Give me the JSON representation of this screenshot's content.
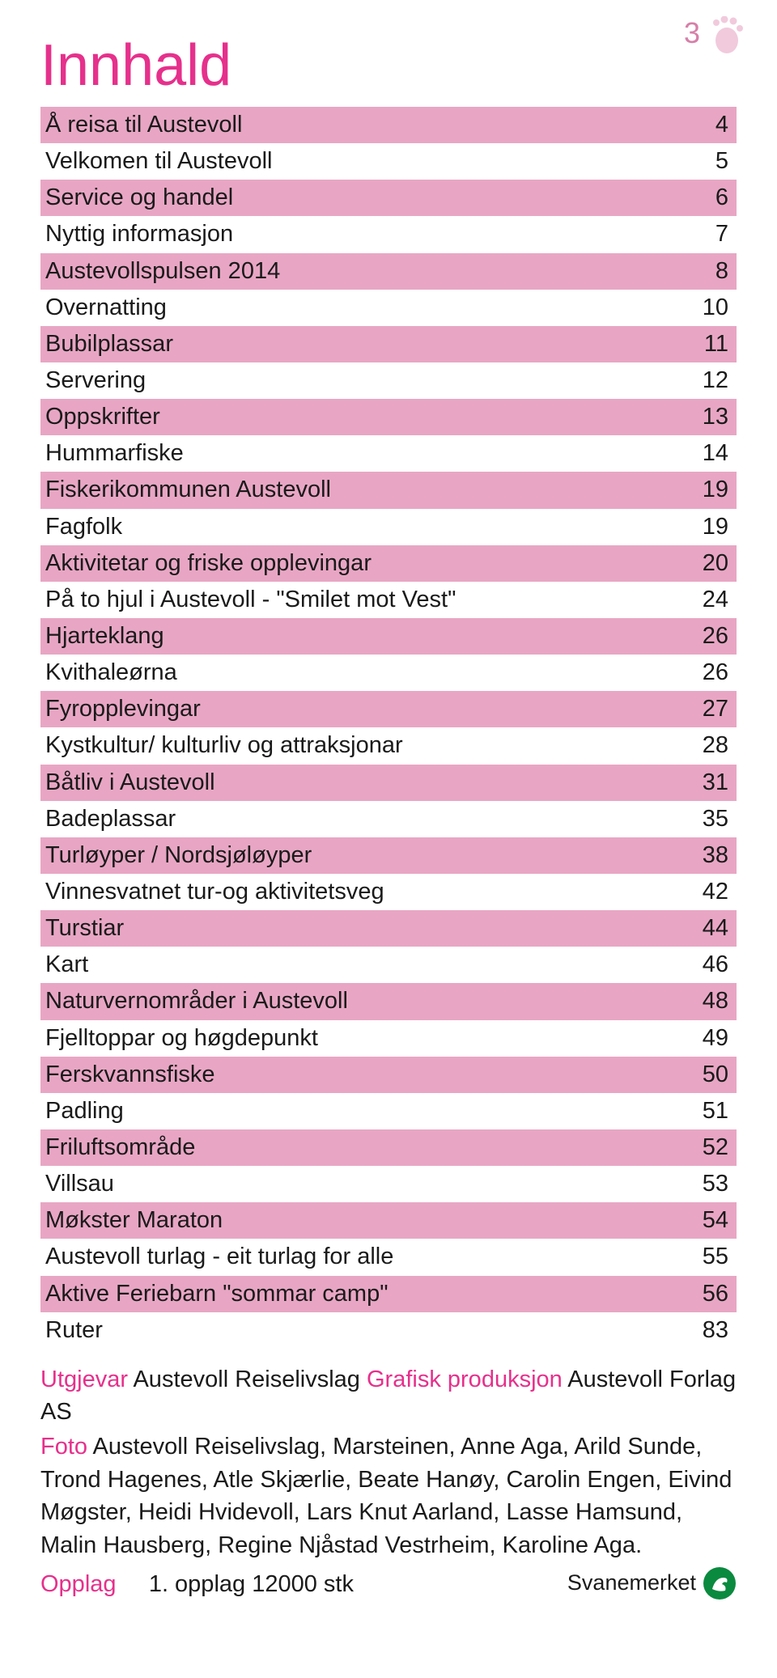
{
  "page_number": "3",
  "title": "Innhald",
  "colors": {
    "accent_pink": "#e6308c",
    "row_pink": "#e8a6c4",
    "row_white": "#ffffff",
    "page_number_color": "#d67fa8",
    "text": "#1a1a1a",
    "svanemerket_green": "#0a8a3f"
  },
  "typography": {
    "title_fontsize": 72,
    "row_fontsize": 29,
    "credits_fontsize": 29
  },
  "toc": [
    {
      "label": "Å reisa til Austevoll",
      "page": "4",
      "shade": "pink"
    },
    {
      "label": "Velkomen til Austevoll",
      "page": "5",
      "shade": "white"
    },
    {
      "label": "Service og handel",
      "page": "6",
      "shade": "pink"
    },
    {
      "label": "Nyttig informasjon",
      "page": "7",
      "shade": "white"
    },
    {
      "label": "Austevollspulsen 2014",
      "page": "8",
      "shade": "pink"
    },
    {
      "label": "Overnatting",
      "page": "10",
      "shade": "white"
    },
    {
      "label": "Bubilplassar",
      "page": "11",
      "shade": "pink"
    },
    {
      "label": "Servering",
      "page": "12",
      "shade": "white"
    },
    {
      "label": "Oppskrifter",
      "page": "13",
      "shade": "pink"
    },
    {
      "label": "Hummarfiske",
      "page": "14",
      "shade": "white"
    },
    {
      "label": "Fiskerikommunen Austevoll",
      "page": "19",
      "shade": "pink"
    },
    {
      "label": "Fagfolk",
      "page": "19",
      "shade": "white"
    },
    {
      "label": "Aktivitetar og friske opplevingar",
      "page": "20",
      "shade": "pink"
    },
    {
      "label": "På to hjul i Austevoll - \"Smilet mot Vest\"",
      "page": "24",
      "shade": "white"
    },
    {
      "label": "Hjarteklang",
      "page": "26",
      "shade": "pink"
    },
    {
      "label": "Kvithaleørna",
      "page": "26",
      "shade": "white"
    },
    {
      "label": "Fyropplevingar",
      "page": "27",
      "shade": "pink"
    },
    {
      "label": "Kystkultur/ kulturliv og attraksjonar",
      "page": "28",
      "shade": "white"
    },
    {
      "label": "Båtliv i Austevoll",
      "page": "31",
      "shade": "pink"
    },
    {
      "label": "Badeplassar",
      "page": "35",
      "shade": "white"
    },
    {
      "label": "Turløyper / Nordsjøløyper",
      "page": "38",
      "shade": "pink"
    },
    {
      "label": "Vinnesvatnet tur-og aktivitetsveg",
      "page": "42",
      "shade": "white"
    },
    {
      "label": "Turstiar",
      "page": "44",
      "shade": "pink"
    },
    {
      "label": "Kart",
      "page": "46",
      "shade": "white"
    },
    {
      "label": "Naturvernområder i Austevoll",
      "page": "48",
      "shade": "pink"
    },
    {
      "label": "Fjelltoppar og høgdepunkt",
      "page": "49",
      "shade": "white"
    },
    {
      "label": "Ferskvannsfiske",
      "page": "50",
      "shade": "pink"
    },
    {
      "label": "Padling",
      "page": "51",
      "shade": "white"
    },
    {
      "label": "Friluftsområde",
      "page": "52",
      "shade": "pink"
    },
    {
      "label": "Villsau",
      "page": "53",
      "shade": "white"
    },
    {
      "label": "Møkster Maraton",
      "page": "54",
      "shade": "pink"
    },
    {
      "label": "Austevoll turlag - eit turlag for alle",
      "page": "55",
      "shade": "white"
    },
    {
      "label": "Aktive Feriebarn \"sommar camp\"",
      "page": "56",
      "shade": "pink"
    },
    {
      "label": "Ruter",
      "page": "83",
      "shade": "white"
    }
  ],
  "credits": {
    "utgjevar_label": "Utgjevar",
    "utgjevar_value": "Austevoll Reiselivslag",
    "grafisk_label": "Grafisk produksjon",
    "grafisk_value": "Austevoll Forlag AS",
    "foto_label": "Foto",
    "foto_value": "Austevoll Reiselivslag, Marsteinen, Anne Aga, Arild Sunde, Trond Hagenes, Atle Skjærlie, Beate Hanøy, Carolin Engen, Eivind Møgster, Heidi Hvidevoll, Lars Knut Aarland, Lasse Hamsund, Malin Hausberg, Regine Njåstad Vestrheim, Karoline Aga.",
    "opplag_label": "Opplag",
    "opplag_value": "1. opplag 12000 stk",
    "svanemerket_label": "Svanemerket"
  }
}
